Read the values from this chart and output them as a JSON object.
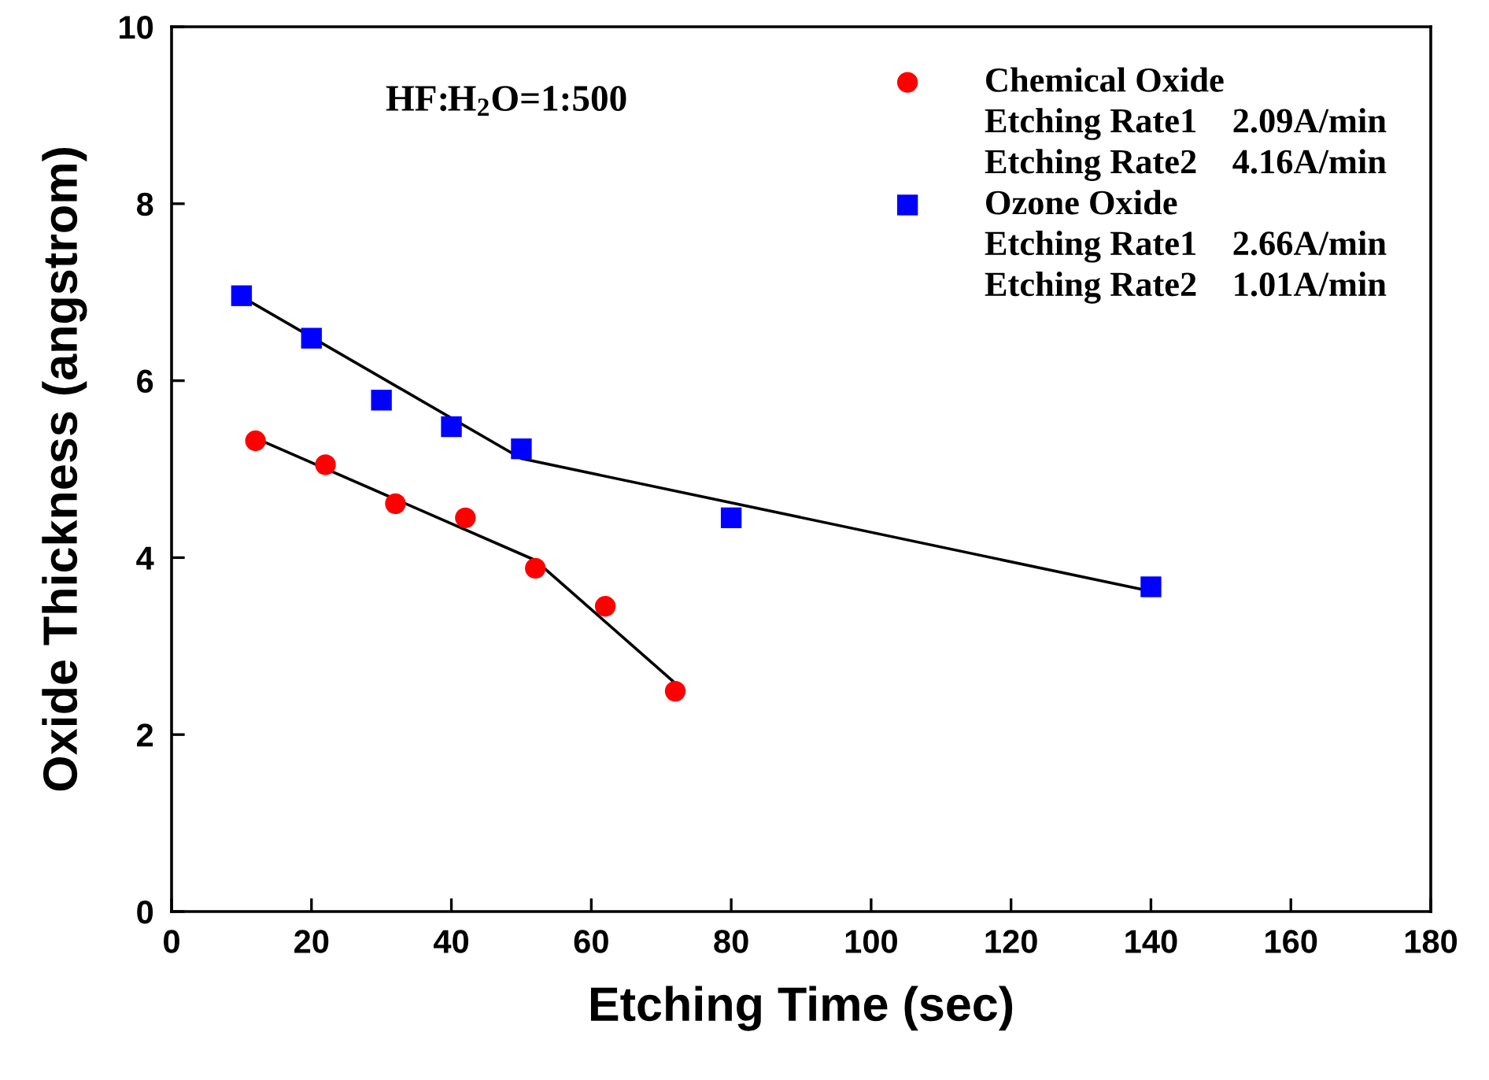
{
  "chart_data": {
    "type": "scatter",
    "xlabel": "Etching Time (sec)",
    "ylabel": "Oxide Thickness (angstrom)",
    "xlim": [
      0,
      180
    ],
    "xticks": [
      0,
      20,
      40,
      60,
      80,
      100,
      120,
      140,
      160,
      180
    ],
    "ylim": [
      0,
      10
    ],
    "yticks": [
      0,
      2,
      4,
      6,
      8,
      10
    ],
    "grid": false,
    "legend": "top right",
    "series": [
      {
        "name": "Chemical Oxide",
        "color": "#ff0000",
        "marker": "circle",
        "x": [
          12,
          22,
          32,
          42,
          52,
          62,
          72
        ],
        "values": [
          5.32,
          5.05,
          4.61,
          4.45,
          3.88,
          3.45,
          2.49
        ]
      },
      {
        "name": "Ozone Oxide",
        "color": "#0000ff",
        "marker": "square",
        "x": [
          10,
          20,
          30,
          40,
          50,
          80,
          140
        ],
        "values": [
          6.96,
          6.48,
          5.78,
          5.48,
          5.23,
          4.45,
          3.67
        ]
      },
      {
        "type": "line",
        "color": "#000000",
        "x": [
          12,
          52,
          72
        ],
        "values": [
          5.35,
          3.97,
          2.58
        ]
      },
      {
        "type": "line",
        "color": "#000000",
        "x": [
          10,
          50,
          140
        ],
        "values": [
          6.95,
          5.12,
          3.62
        ]
      }
    ],
    "annotations": [
      "HF:H$_{2}$O=1:500",
      "Etching Rate1    2.09A/min",
      "Etching Rate2    4.16A/min",
      "Etching Rate1    2.66A/min",
      "Etching Rate2    1.01A/min"
    ]
  }
}
